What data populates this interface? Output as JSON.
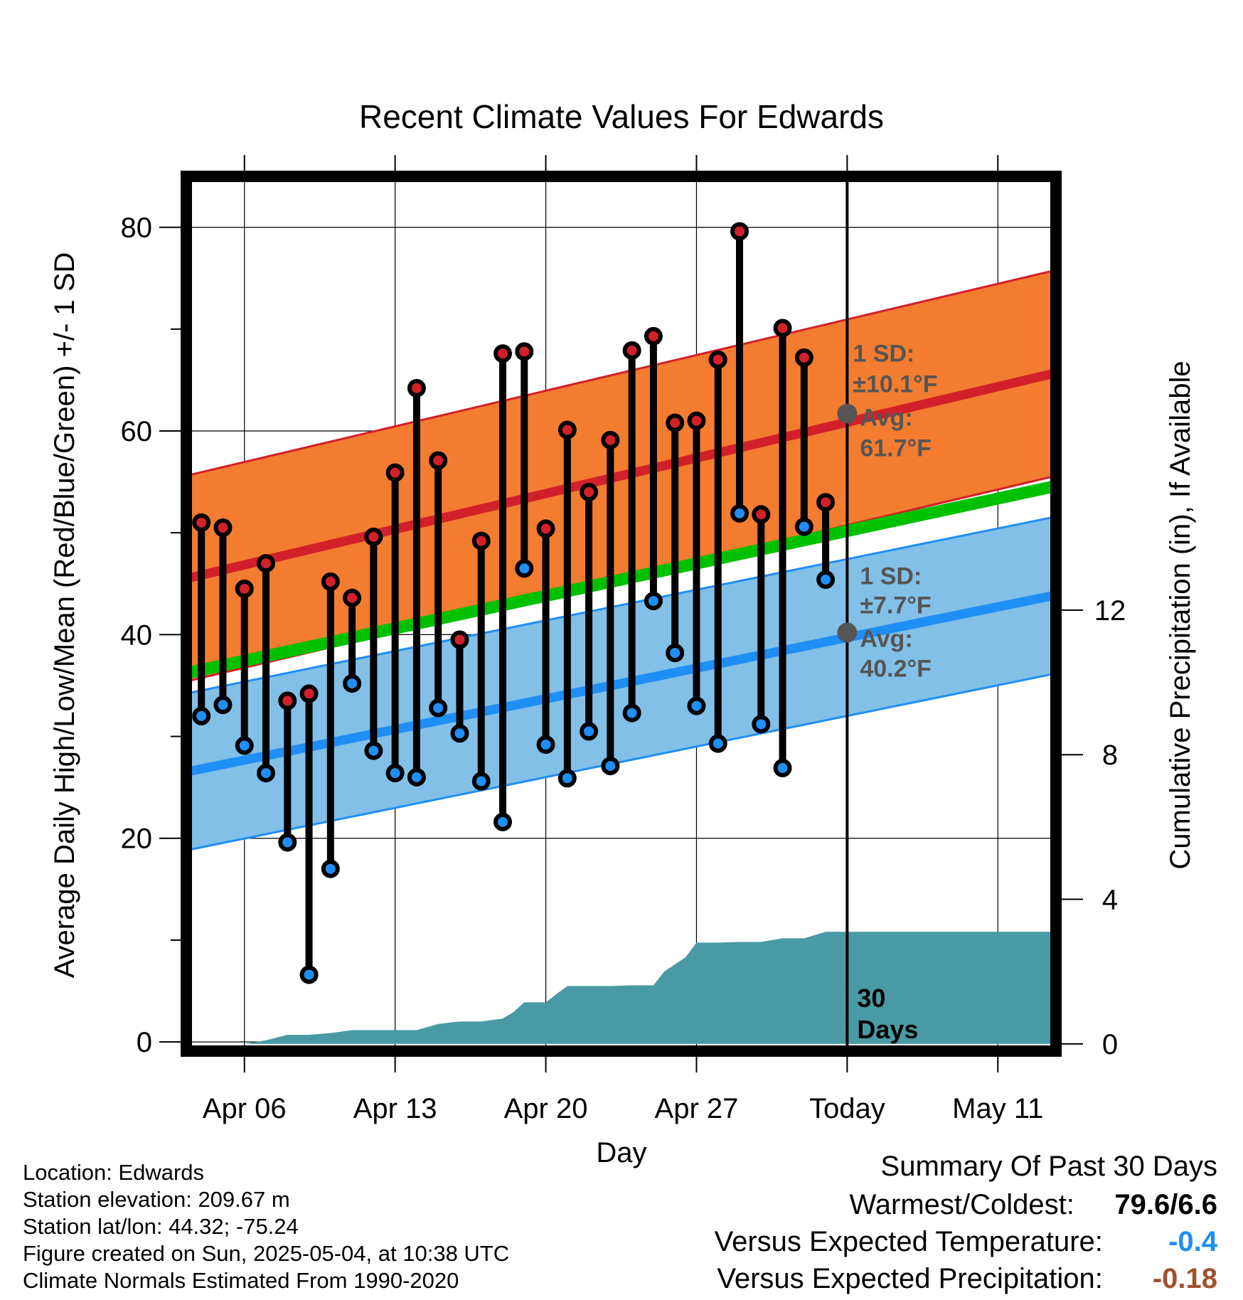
{
  "chart_data": {
    "type": "line",
    "title": "Recent Climate Values For Edwards",
    "xlabel": "Day",
    "ylabel": "Average Daily High/Low/Mean (Red/Blue/Green) +/- 1 SD",
    "y2label": "Cumulative Precipitation (in), If Available",
    "x_ticks": [
      {
        "day": 6,
        "label": "Apr 06"
      },
      {
        "day": 13,
        "label": "Apr 13"
      },
      {
        "day": 20,
        "label": "Apr 20"
      },
      {
        "day": 27,
        "label": "Apr 27"
      },
      {
        "day": 34,
        "label": "Today"
      },
      {
        "day": 41,
        "label": "May 11"
      }
    ],
    "xlim": [
      3.3,
      43.7
    ],
    "ylim": [
      -0.9,
      85
    ],
    "y_ticks": [
      0,
      20,
      40,
      60,
      80
    ],
    "y2lim": [
      -0.2,
      24
    ],
    "y2_ticks": [
      0,
      4,
      8,
      12
    ],
    "grid": true,
    "today_day": 34,
    "window_label": "30 Days",
    "normals": {
      "x_start": 3.5,
      "x_end": 43.5,
      "high_mean": [
        45.6,
        65.6
      ],
      "high_sd": 10.1,
      "low_mean": [
        26.6,
        43.8
      ],
      "low_sd": 7.7,
      "avg_mean": [
        36.3,
        54.5
      ],
      "colors": {
        "high_band": "#f47c30",
        "high_line": "#d2202a",
        "low_band": "#82c0e8",
        "low_line": "#1f8ef5",
        "avg_line": "#00c000"
      }
    },
    "annotations": {
      "high": {
        "sd_label": "1 SD:",
        "sd_value": "±10.1°F",
        "avg_label": "Avg:",
        "avg_value": "61.7°F",
        "avg": 61.7
      },
      "low": {
        "sd_label": "1 SD:",
        "sd_value": "±7.7°F",
        "avg_label": "Avg:",
        "avg_value": "40.2°F",
        "avg": 40.2
      }
    },
    "series": [
      {
        "name": "High",
        "color": "#d2202a",
        "x": [
          4,
          5,
          6,
          7,
          8,
          9,
          10,
          11,
          12,
          13,
          14,
          15,
          16,
          17,
          18,
          19,
          20,
          21,
          22,
          23,
          24,
          25,
          26,
          27,
          28,
          29,
          30,
          31,
          32,
          33
        ],
        "values": [
          51.0,
          50.5,
          44.5,
          47.0,
          33.5,
          34.2,
          45.2,
          43.6,
          49.6,
          55.9,
          64.2,
          57.1,
          39.5,
          49.2,
          67.6,
          67.8,
          50.4,
          60.1,
          54.0,
          59.1,
          67.9,
          69.3,
          60.8,
          61.0,
          67.0,
          79.6,
          51.8,
          70.1,
          67.2,
          53.0
        ]
      },
      {
        "name": "Low",
        "color": "#1f8ef5",
        "x": [
          4,
          5,
          6,
          7,
          8,
          9,
          10,
          11,
          12,
          13,
          14,
          15,
          16,
          17,
          18,
          19,
          20,
          21,
          22,
          23,
          24,
          25,
          26,
          27,
          28,
          29,
          30,
          31,
          32,
          33
        ],
        "values": [
          32.0,
          33.1,
          29.1,
          26.4,
          19.6,
          6.6,
          17.0,
          35.2,
          28.6,
          26.4,
          26.0,
          32.8,
          30.3,
          25.6,
          21.6,
          46.5,
          29.2,
          25.9,
          30.5,
          27.1,
          32.3,
          43.3,
          38.2,
          33.0,
          29.3,
          51.9,
          31.2,
          26.9,
          50.6,
          45.4
        ]
      },
      {
        "name": "Cumulative Precipitation",
        "color": "#4a9aa5",
        "axis": "right",
        "x": [
          3.5,
          4,
          5,
          6,
          7,
          8,
          9,
          10,
          11,
          12,
          13,
          14,
          15,
          16,
          17,
          18,
          18.5,
          19,
          19.5,
          20,
          20.5,
          21,
          22,
          23,
          24,
          25,
          25.5,
          26,
          26.5,
          27,
          28,
          29,
          30,
          31,
          32,
          33,
          34,
          41,
          43.5
        ],
        "values": [
          0,
          0,
          0,
          0,
          0.1,
          0.25,
          0.25,
          0.3,
          0.38,
          0.38,
          0.38,
          0.38,
          0.55,
          0.62,
          0.62,
          0.7,
          0.88,
          1.15,
          1.15,
          1.15,
          1.38,
          1.6,
          1.6,
          1.6,
          1.62,
          1.62,
          2.0,
          2.2,
          2.4,
          2.8,
          2.8,
          2.82,
          2.82,
          2.92,
          2.92,
          3.1,
          3.1,
          3.1,
          3.1
        ]
      }
    ]
  },
  "footer": {
    "location": "Location: Edwards",
    "elevation": "Station elevation: 209.67 m",
    "latlon": "Station lat/lon: 44.32; -75.24",
    "created": "Figure created on Sun, 2025-05-04, at 10:38 UTC",
    "normals": "Climate Normals Estimated From 1990-2020"
  },
  "summary": {
    "title": "Summary Of Past 30 Days",
    "warm_cold_label": "Warmest/Coldest:",
    "warm_cold_value": "79.6/6.6",
    "temp_label": "Versus Expected Temperature:",
    "temp_value": "-0.4",
    "temp_color": "#1f8ef5",
    "precip_label": "Versus Expected Precipitation:",
    "precip_value": "-0.18",
    "precip_color": "#a0522d"
  }
}
